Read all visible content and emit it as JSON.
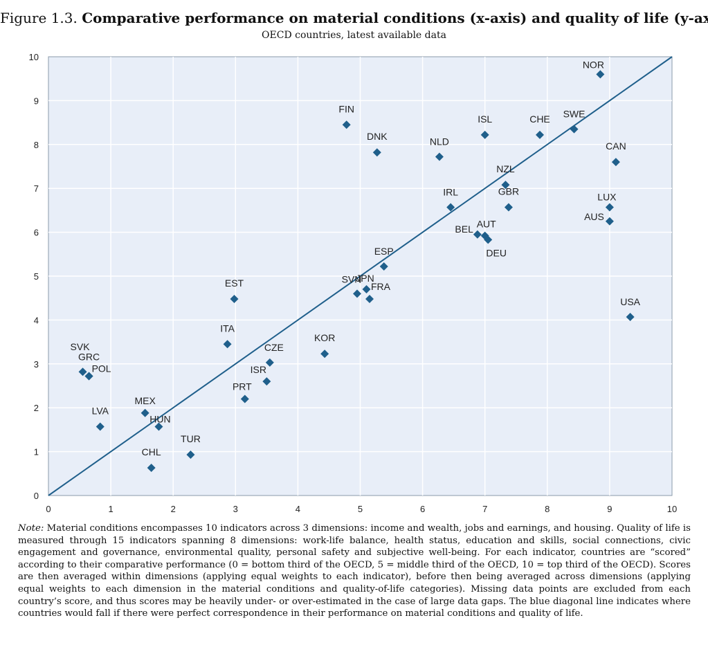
{
  "figure": {
    "number": "Figure 1.3.",
    "title": "Comparative performance on material conditions (x-axis) and quality of life (y-axis)",
    "subtitle": "OECD countries, latest available data"
  },
  "chart_data": {
    "type": "scatter",
    "xlim": [
      0,
      10
    ],
    "ylim": [
      0,
      10
    ],
    "x_ticks": [
      "0",
      "1",
      "2",
      "3",
      "4",
      "5",
      "6",
      "7",
      "8",
      "9",
      "10"
    ],
    "y_ticks": [
      "0",
      "1",
      "2",
      "3",
      "4",
      "5",
      "6",
      "7",
      "8",
      "9",
      "10"
    ],
    "grid": true,
    "marker": "diamond",
    "colors": {
      "plot_background": "#e8eef8",
      "marker": "#1f5f8b",
      "line": "#1f5f8b",
      "grid": "#ffffff"
    },
    "reference_line": {
      "from": [
        0,
        0
      ],
      "to": [
        10,
        10
      ]
    },
    "points": [
      {
        "label": "NOR",
        "x": 8.85,
        "y": 9.6
      },
      {
        "label": "FIN",
        "x": 4.78,
        "y": 8.45
      },
      {
        "label": "ISL",
        "x": 7.0,
        "y": 8.22
      },
      {
        "label": "CHE",
        "x": 7.88,
        "y": 8.22
      },
      {
        "label": "SWE",
        "x": 8.43,
        "y": 8.35
      },
      {
        "label": "DNK",
        "x": 5.27,
        "y": 7.82
      },
      {
        "label": "NLD",
        "x": 6.27,
        "y": 7.72
      },
      {
        "label": "CAN",
        "x": 9.1,
        "y": 7.6
      },
      {
        "label": "NZL",
        "x": 7.33,
        "y": 7.08
      },
      {
        "label": "IRL",
        "x": 6.45,
        "y": 6.57
      },
      {
        "label": "GBR",
        "x": 7.38,
        "y": 6.57
      },
      {
        "label": "LUX",
        "x": 9.0,
        "y": 6.57
      },
      {
        "label": "AUS",
        "x": 9.0,
        "y": 6.25
      },
      {
        "label": "BEL",
        "x": 6.88,
        "y": 5.95
      },
      {
        "label": "AUT",
        "x": 7.0,
        "y": 5.92
      },
      {
        "label": "DEU",
        "x": 7.05,
        "y": 5.83
      },
      {
        "label": "ESP",
        "x": 5.38,
        "y": 5.22
      },
      {
        "label": "SVN",
        "x": 4.95,
        "y": 4.6
      },
      {
        "label": "JPN",
        "x": 5.1,
        "y": 4.7
      },
      {
        "label": "FRA",
        "x": 5.15,
        "y": 4.48
      },
      {
        "label": "EST",
        "x": 2.98,
        "y": 4.48
      },
      {
        "label": "USA",
        "x": 9.33,
        "y": 4.07
      },
      {
        "label": "ITA",
        "x": 2.87,
        "y": 3.45
      },
      {
        "label": "KOR",
        "x": 4.43,
        "y": 3.23
      },
      {
        "label": "CZE",
        "x": 3.55,
        "y": 3.03
      },
      {
        "label": "SVK",
        "x": 0.55,
        "y": 2.82
      },
      {
        "label": "GRC",
        "x": 0.65,
        "y": 2.72
      },
      {
        "label": "POL",
        "x": 0.65,
        "y": 2.72
      },
      {
        "label": "ISR",
        "x": 3.5,
        "y": 2.6
      },
      {
        "label": "PRT",
        "x": 3.15,
        "y": 2.2
      },
      {
        "label": "MEX",
        "x": 1.55,
        "y": 1.88
      },
      {
        "label": "HUN",
        "x": 1.77,
        "y": 1.57
      },
      {
        "label": "LVA",
        "x": 0.83,
        "y": 1.57
      },
      {
        "label": "TUR",
        "x": 2.28,
        "y": 0.93
      },
      {
        "label": "CHL",
        "x": 1.65,
        "y": 0.63
      }
    ]
  },
  "note": {
    "lead": "Note:",
    "text": "Material conditions encompasses 10 indicators across 3 dimensions: income and wealth, jobs and earnings, and housing. Quality of life is measured through 15 indicators spanning 8 dimensions: work-life balance, health status, education and skills, social connections, civic engagement and governance, environmental quality, personal safety and subjective well-being. For each indicator, countries are “scored” according to their comparative performance (0 = bottom third of the OECD, 5 = middle third of the OECD, 10 = top third of the OECD). Scores are then averaged within dimensions (applying equal weights to each indicator), before then being averaged across dimensions (applying equal weights to each dimension in the material conditions and quality-of-life categories). Missing data points are excluded from each country’s score, and thus scores may be heavily under- or over-estimated in the case of large data gaps. The blue diagonal line indicates where countries would fall if there were perfect correspondence in their performance on material conditions and quality of life."
  }
}
